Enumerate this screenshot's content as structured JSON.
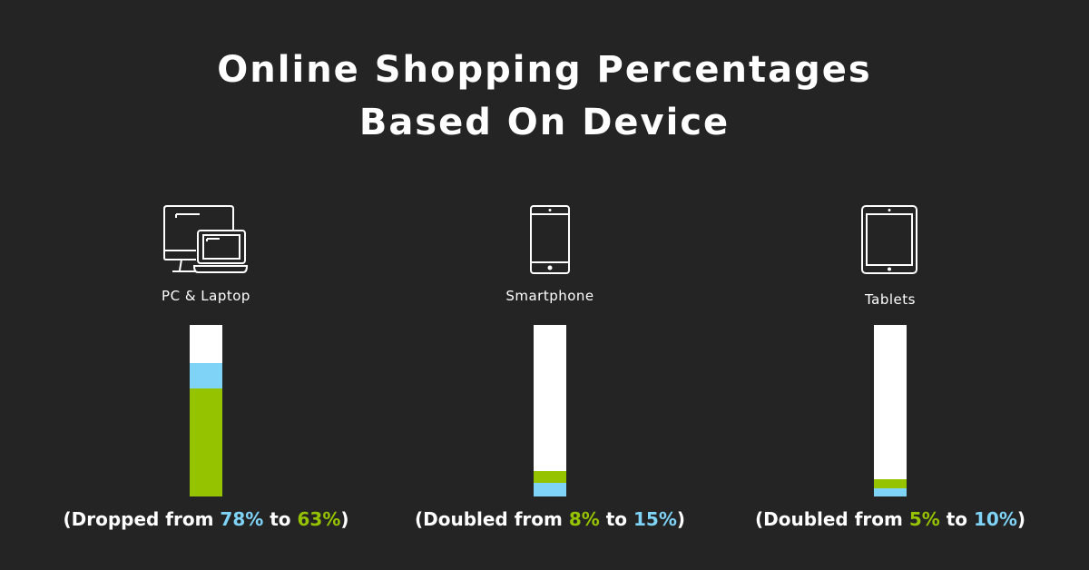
{
  "title": [
    "Online Shopping Percentages",
    "Based On Device"
  ],
  "colors": {
    "background": "#242424",
    "old": "#7fd3f7",
    "new": "#96c300",
    "bar_bg": "#ffffff"
  },
  "chart_data": {
    "type": "bar",
    "title": "Online Shopping Percentages Based On Device",
    "categories": [
      "PC & Laptop",
      "Smartphone",
      "Tablets"
    ],
    "ylim": [
      0,
      100
    ],
    "grid": false,
    "series": [
      {
        "values": [
          78,
          8,
          5
        ]
      },
      {
        "values": [
          63,
          15,
          10
        ]
      }
    ]
  },
  "devices": [
    {
      "label": "PC & Laptop",
      "icon": "desktop-laptop-icon",
      "caption": {
        "prefix": "(Dropped from ",
        "from": "78%",
        "mid": " to ",
        "to": "63%",
        "suffix": ")"
      },
      "colors": {
        "from": "#7fd3f7",
        "to": "#96c300"
      }
    },
    {
      "label": "Smartphone",
      "icon": "smartphone-icon",
      "caption": {
        "prefix": "(Doubled from ",
        "from": "8%",
        "mid": " to ",
        "to": "15%",
        "suffix": ")"
      },
      "colors": {
        "from": "#96c300",
        "to": "#7fd3f7"
      }
    },
    {
      "label": "Tablets",
      "icon": "tablet-icon",
      "caption": {
        "prefix": "(Doubled from ",
        "from": "5%",
        "mid": " to ",
        "to": "10%",
        "suffix": ")"
      },
      "colors": {
        "from": "#96c300",
        "to": "#7fd3f7"
      }
    }
  ]
}
